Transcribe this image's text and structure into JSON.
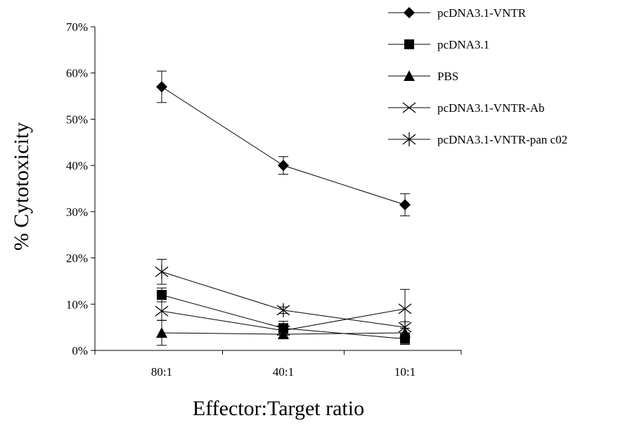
{
  "chart_data": {
    "type": "line",
    "title": "",
    "xlabel": "Effector:Target ratio",
    "ylabel": "% Cytotoxicity",
    "categories": [
      "80:1",
      "40:1",
      "10:1"
    ],
    "ylim": [
      0,
      0.7
    ],
    "yticks": [
      {
        "value": 0,
        "label": "0%"
      },
      {
        "value": 0.1,
        "label": "10%"
      },
      {
        "value": 0.2,
        "label": "20%"
      },
      {
        "value": 0.3,
        "label": "30%"
      },
      {
        "value": 0.4,
        "label": "40%"
      },
      {
        "value": 0.5,
        "label": "50%"
      },
      {
        "value": 0.6,
        "label": "60%"
      },
      {
        "value": 0.7,
        "label": "70%"
      }
    ],
    "grid": false,
    "legend_position": "top-right",
    "series": [
      {
        "name": "pcDNA3.1-VNTR",
        "marker": "diamond",
        "values": [
          0.57,
          0.4,
          0.315
        ],
        "errors": [
          0.034,
          0.019,
          0.024
        ]
      },
      {
        "name": "pcDNA3.1",
        "marker": "square",
        "values": [
          0.12,
          0.048,
          0.025
        ],
        "errors": [
          0.015,
          0.015,
          0.012
        ]
      },
      {
        "name": "PBS",
        "marker": "triangle",
        "values": [
          0.038,
          0.035,
          0.038
        ],
        "errors": [
          0.027,
          0.01,
          0.01
        ]
      },
      {
        "name": "pcDNA3.1-VNTR-Ab",
        "marker": "x",
        "values": [
          0.085,
          0.043,
          0.09
        ],
        "errors": [
          0.02,
          0.015,
          0.042
        ]
      },
      {
        "name": "pcDNA3.1-VNTR-pan c02",
        "marker": "star",
        "values": [
          0.17,
          0.087,
          0.05
        ],
        "errors": [
          0.027,
          0.007,
          0.012
        ]
      }
    ]
  }
}
